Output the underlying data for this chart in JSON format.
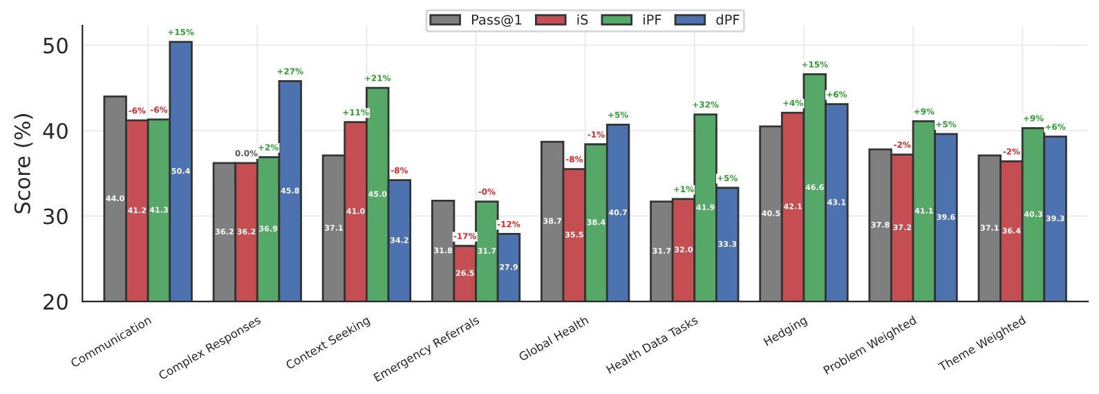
{
  "chart_data": {
    "type": "bar",
    "ylabel": "Score (%)",
    "categories": [
      "Communication",
      "Complex Responses",
      "Context Seeking",
      "Emergency Referrals",
      "Global Health",
      "Health Data Tasks",
      "Hedging",
      "Problem Weighted",
      "Theme Weighted"
    ],
    "series": [
      {
        "name": "Pass@1",
        "color": "#7f7f7f",
        "values": [
          44.0,
          36.2,
          37.1,
          31.8,
          38.7,
          31.7,
          40.5,
          37.8,
          37.1
        ],
        "value_labels": [
          "44.0",
          "36.2",
          "37.1",
          "31.8",
          "38.7",
          "31.7",
          "40.5",
          "37.8",
          "37.1"
        ]
      },
      {
        "name": "iS",
        "color": "#c44e52",
        "values": [
          41.2,
          36.2,
          41.0,
          26.5,
          35.5,
          32.0,
          42.1,
          37.2,
          36.4
        ],
        "value_labels": [
          "41.2",
          "36.2",
          "41.0",
          "26.5",
          "35.5",
          "32.0",
          "42.1",
          "37.2",
          "36.4"
        ]
      },
      {
        "name": "iPF",
        "color": "#55a868",
        "values": [
          41.3,
          36.9,
          45.0,
          31.7,
          38.4,
          41.9,
          46.6,
          41.1,
          40.3
        ],
        "value_labels": [
          "41.3",
          "36.9",
          "45.0",
          "31.7",
          "38.4",
          "41.9",
          "46.6",
          "41.1",
          "40.3"
        ]
      },
      {
        "name": "dPF",
        "color": "#4c72b0",
        "values": [
          50.4,
          45.8,
          34.2,
          27.9,
          40.7,
          33.3,
          43.1,
          39.6,
          39.3
        ],
        "value_labels": [
          "50.4",
          "45.8",
          "34.2",
          "27.9",
          "40.7",
          "33.3",
          "43.1",
          "39.6",
          "39.3"
        ]
      }
    ],
    "annotations": [
      "-6%",
      "0.0%",
      "+11%",
      "-17%",
      "-8%",
      "+1%",
      "+4%",
      "-2%",
      "-2%",
      "-6%",
      "+2%",
      "+21%",
      "-0%",
      "-1%",
      "+32%",
      "+15%",
      "+9%",
      "+9%",
      "+15%",
      "+27%",
      "-8%",
      "-12%",
      "+5%",
      "+5%",
      "+6%",
      "+5%",
      "+6%"
    ],
    "ylim": [
      20,
      52.3
    ],
    "yticks": [
      20,
      30,
      40,
      50
    ],
    "grid": true,
    "legend": "top"
  }
}
